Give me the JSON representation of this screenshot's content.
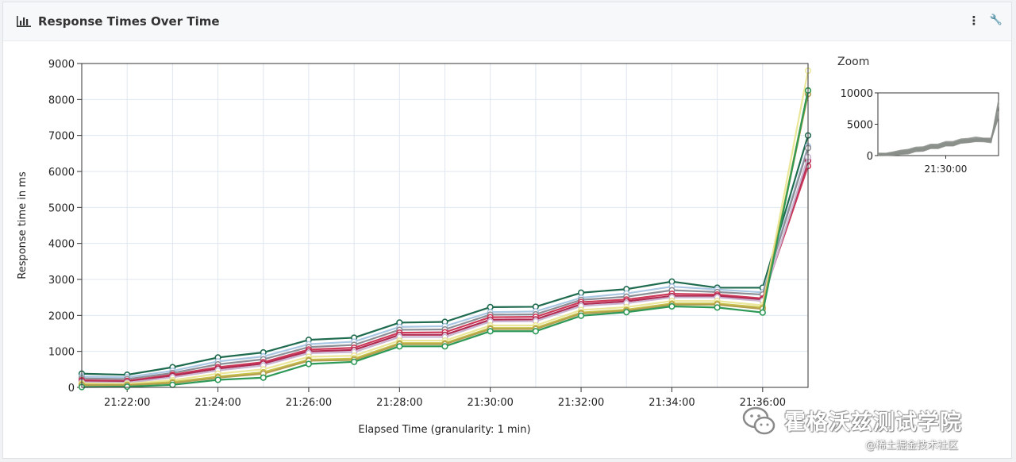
{
  "header": {
    "title": "Response Times Over Time",
    "more_label": "⋮",
    "settings_label": "🔧"
  },
  "zoom": {
    "title": "Zoom",
    "y_ticks": [
      "10000",
      "5000",
      "0"
    ],
    "x_tick": "21:30:00"
  },
  "watermark": {
    "text": "霍格沃兹测试学院",
    "sub": "@稀土掘金技术社区"
  },
  "chart_data": {
    "type": "line",
    "ylabel": "Response time in ms",
    "xlabel": "Elapsed Time (granularity: 1 min)",
    "ylim": [
      0,
      9000
    ],
    "xlim": [
      "21:21:00",
      "21:37:00"
    ],
    "y_ticks": [
      "0",
      "1000",
      "2000",
      "3000",
      "4000",
      "5000",
      "6000",
      "7000",
      "8000",
      "9000"
    ],
    "x_ticks": [
      "21:22:00",
      "21:24:00",
      "21:26:00",
      "21:28:00",
      "21:30:00",
      "21:32:00",
      "21:34:00",
      "21:36:00"
    ],
    "grid": true,
    "x": [
      "21:21:00",
      "21:22:00",
      "21:23:00",
      "21:24:00",
      "21:25:00",
      "21:26:00",
      "21:27:00",
      "21:28:00",
      "21:29:00",
      "21:30:00",
      "21:31:00",
      "21:32:00",
      "21:33:00",
      "21:34:00",
      "21:35:00",
      "21:36:00",
      "21:37:00"
    ],
    "series": [
      {
        "color": "#1f6b4f",
        "values": [
          380,
          350,
          560,
          830,
          970,
          1320,
          1380,
          1800,
          1820,
          2230,
          2240,
          2630,
          2730,
          2940,
          2770,
          2770,
          7000
        ]
      },
      {
        "color": "#a9c6e3",
        "values": [
          300,
          280,
          460,
          720,
          860,
          1200,
          1270,
          1680,
          1700,
          2090,
          2110,
          2490,
          2610,
          2800,
          2720,
          2640,
          6700
        ]
      },
      {
        "color": "#8c8f96",
        "values": [
          250,
          230,
          400,
          640,
          780,
          1120,
          1180,
          1600,
          1610,
          2020,
          2030,
          2430,
          2520,
          2700,
          2650,
          2580,
          6650
        ]
      },
      {
        "color": "#cd3a5a",
        "values": [
          200,
          180,
          350,
          560,
          700,
          1050,
          1100,
          1520,
          1530,
          1950,
          1960,
          2370,
          2440,
          2600,
          2580,
          2470,
          6150
        ]
      },
      {
        "color": "#b02a52",
        "values": [
          170,
          160,
          320,
          520,
          660,
          1000,
          1040,
          1460,
          1460,
          1880,
          1890,
          2310,
          2390,
          2540,
          2540,
          2440,
          6300
        ]
      },
      {
        "color": "#c9b5d0",
        "values": [
          140,
          130,
          280,
          470,
          610,
          950,
          980,
          1400,
          1400,
          1830,
          1840,
          2260,
          2340,
          2500,
          2500,
          2400,
          6400
        ]
      },
      {
        "color": "#ebe79a",
        "values": [
          110,
          100,
          200,
          380,
          500,
          850,
          880,
          1300,
          1300,
          1720,
          1720,
          2150,
          2230,
          2400,
          2400,
          2280,
          8800
        ]
      },
      {
        "color": "#c8c24a",
        "values": [
          80,
          70,
          150,
          300,
          420,
          770,
          800,
          1230,
          1230,
          1650,
          1650,
          2080,
          2160,
          2330,
          2330,
          2220,
          8250
        ]
      },
      {
        "color": "#b4a04e",
        "values": [
          60,
          60,
          120,
          270,
          380,
          740,
          760,
          1200,
          1200,
          1620,
          1620,
          2050,
          2130,
          2300,
          2300,
          2180,
          8150
        ]
      },
      {
        "color": "#2e9957",
        "values": [
          10,
          20,
          70,
          210,
          270,
          650,
          710,
          1140,
          1140,
          1560,
          1560,
          1990,
          2090,
          2250,
          2220,
          2080,
          8250
        ]
      }
    ]
  }
}
